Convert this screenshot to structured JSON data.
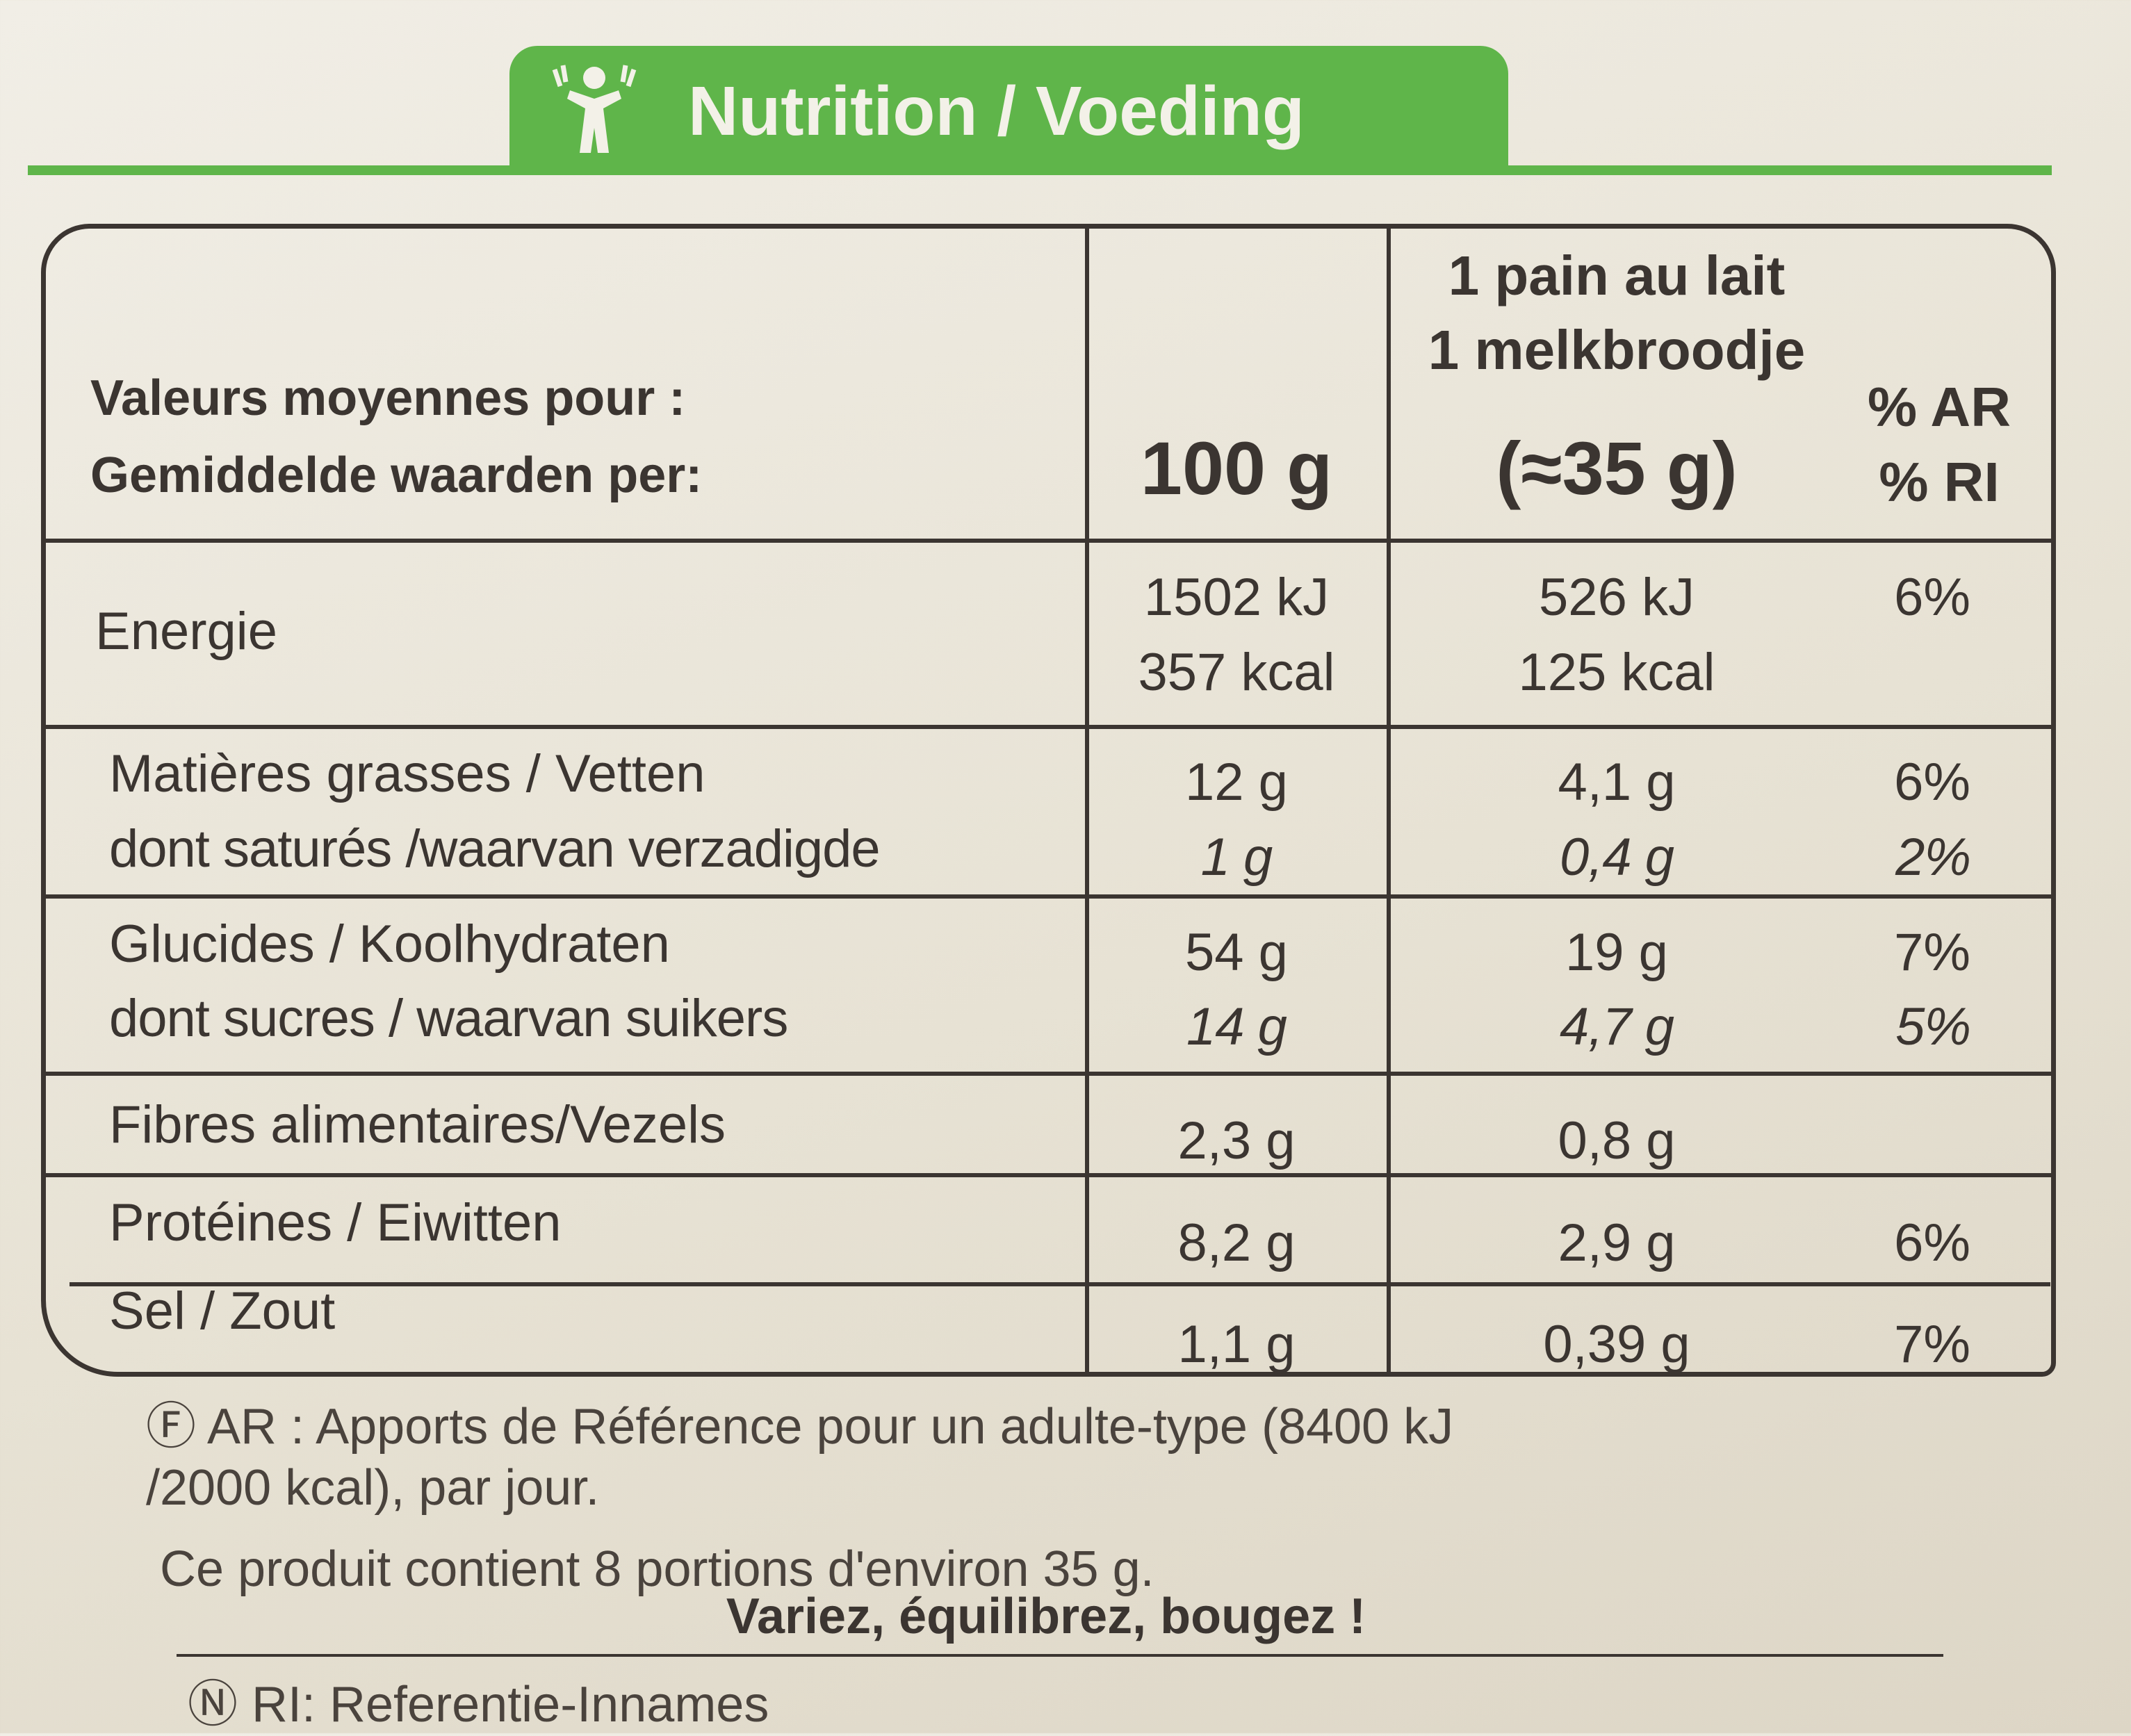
{
  "header": {
    "title": "Nutrition / Voeding"
  },
  "table": {
    "head": [
      [
        "Valeurs moyennes pour :",
        "Gemiddelde waarden per:"
      ],
      [
        "100 g"
      ],
      [
        "1 pain au lait",
        "1 melkbroodje",
        "(≈35 g)"
      ],
      [
        "% AR",
        "% RI"
      ]
    ],
    "rows": [
      [
        [
          "Energie"
        ],
        [
          "1502 kJ",
          "357 kcal"
        ],
        [
          "526 kJ",
          "125 kcal"
        ],
        [
          "6%"
        ]
      ],
      [
        [
          "Matières grasses / Vetten",
          "dont saturés /waarvan verzadigde"
        ],
        [
          "12 g",
          "1 g"
        ],
        [
          "4,1 g",
          "0,4 g"
        ],
        [
          "6%",
          "2%"
        ]
      ],
      [
        [
          "Glucides / Koolhydraten",
          "dont sucres / waarvan suikers"
        ],
        [
          "54 g",
          "14 g"
        ],
        [
          "19 g",
          "4,7 g"
        ],
        [
          "7%",
          "5%"
        ]
      ],
      [
        [
          "Fibres alimentaires/Vezels"
        ],
        [
          "2,3 g"
        ],
        [
          "0,8 g"
        ]
      ],
      [
        [
          "Protéines / Eiwitten"
        ],
        [
          "8,2 g"
        ],
        [
          "2,9 g"
        ],
        [
          "6%"
        ]
      ],
      [
        [
          "Sel / Zout"
        ],
        [
          "1,1 g"
        ],
        [
          "0,39 g"
        ],
        [
          "7%"
        ]
      ]
    ]
  },
  "footer": {
    "notes": [
      "Ⓕ AR : Apports de Référence pour un adulte-type (8400 kJ",
      "/2000 kcal), par jour.",
      "Ce produit contient 8 portions d'environ 35 g.",
      "Variez, équilibrez, bougez !",
      "Ⓝ RI: Referentie-Innames"
    ]
  }
}
